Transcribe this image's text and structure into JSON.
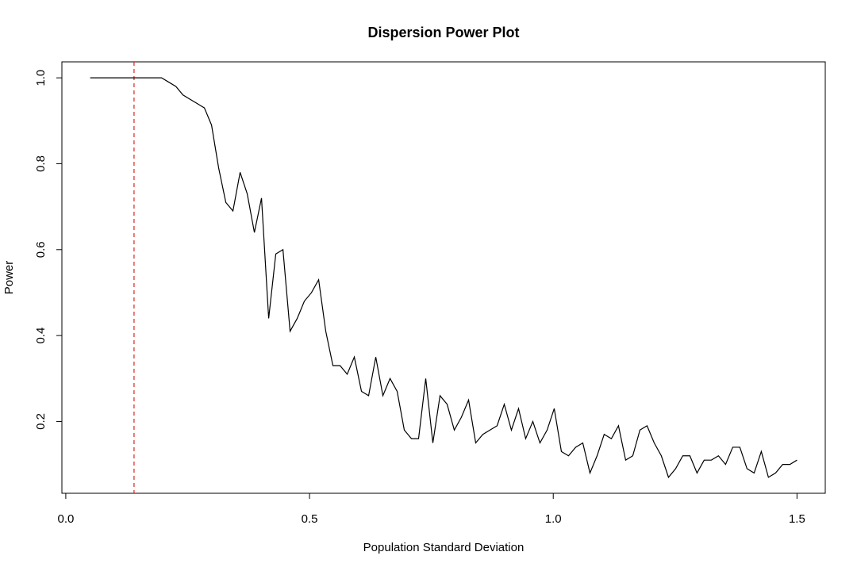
{
  "chart_data": {
    "type": "line",
    "title": "Dispersion Power Plot",
    "x_label": "Population Standard Deviation",
    "y_label": "Power",
    "x": [
      0.05,
      0.0646,
      0.0793,
      0.0939,
      0.1086,
      0.1232,
      0.1379,
      0.1525,
      0.1672,
      0.1818,
      0.1965,
      0.2111,
      0.2258,
      0.2404,
      0.2551,
      0.2697,
      0.2843,
      0.299,
      0.3136,
      0.3283,
      0.3429,
      0.3576,
      0.3722,
      0.3869,
      0.4015,
      0.4162,
      0.4308,
      0.4455,
      0.4601,
      0.4748,
      0.4894,
      0.504,
      0.5187,
      0.5333,
      0.548,
      0.5626,
      0.5773,
      0.5919,
      0.6066,
      0.6212,
      0.6359,
      0.6505,
      0.6652,
      0.6798,
      0.6944,
      0.7091,
      0.7237,
      0.7384,
      0.753,
      0.7677,
      0.7823,
      0.797,
      0.8116,
      0.8263,
      0.8409,
      0.8556,
      0.8702,
      0.8848,
      0.8995,
      0.9141,
      0.9288,
      0.9434,
      0.9581,
      0.9727,
      0.9874,
      1.002,
      1.0167,
      1.0313,
      1.046,
      1.0606,
      1.0753,
      1.0899,
      1.1045,
      1.1192,
      1.1338,
      1.1485,
      1.1631,
      1.1778,
      1.1924,
      1.2071,
      1.2217,
      1.2364,
      1.251,
      1.2657,
      1.2803,
      1.2949,
      1.3096,
      1.3242,
      1.3389,
      1.3535,
      1.3682,
      1.3828,
      1.3975,
      1.4121,
      1.4268,
      1.4414,
      1.4561,
      1.4707,
      1.4854,
      1.5
    ],
    "series": [
      {
        "color": "#000000",
        "values": [
          1,
          1,
          1,
          1,
          1,
          1,
          1,
          1,
          1,
          1,
          1,
          0.99,
          0.98,
          0.96,
          0.95,
          0.94,
          0.93,
          0.89,
          0.79,
          0.71,
          0.69,
          0.78,
          0.73,
          0.64,
          0.72,
          0.44,
          0.59,
          0.6,
          0.41,
          0.44,
          0.48,
          0.5,
          0.53,
          0.41,
          0.33,
          0.33,
          0.31,
          0.35,
          0.27,
          0.26,
          0.35,
          0.26,
          0.3,
          0.27,
          0.18,
          0.16,
          0.16,
          0.3,
          0.15,
          0.26,
          0.24,
          0.18,
          0.21,
          0.25,
          0.15,
          0.17,
          0.18,
          0.19,
          0.24,
          0.18,
          0.23,
          0.16,
          0.2,
          0.15,
          0.18,
          0.23,
          0.13,
          0.12,
          0.14,
          0.15,
          0.08,
          0.12,
          0.17,
          0.16,
          0.19,
          0.11,
          0.12,
          0.18,
          0.19,
          0.15,
          0.12,
          0.07,
          0.09,
          0.12,
          0.12,
          0.08,
          0.11,
          0.11,
          0.12,
          0.1,
          0.14,
          0.14,
          0.09,
          0.08,
          0.13,
          0.07,
          0.08,
          0.1,
          0.1,
          0.11
        ]
      }
    ],
    "vline": {
      "x": 0.14,
      "color": "#e0302f"
    },
    "xlim": [
      -0.008,
      1.558
    ],
    "ylim": [
      0.0328,
      1.0372
    ],
    "xticks": [
      {
        "value": 0,
        "label": "0.0"
      },
      0.5,
      {
        "value": 1,
        "label": "1.0"
      },
      1.5
    ],
    "yticks": [
      0.2,
      0.4,
      0.6,
      0.8,
      {
        "value": 1,
        "label": "1.0"
      }
    ]
  }
}
